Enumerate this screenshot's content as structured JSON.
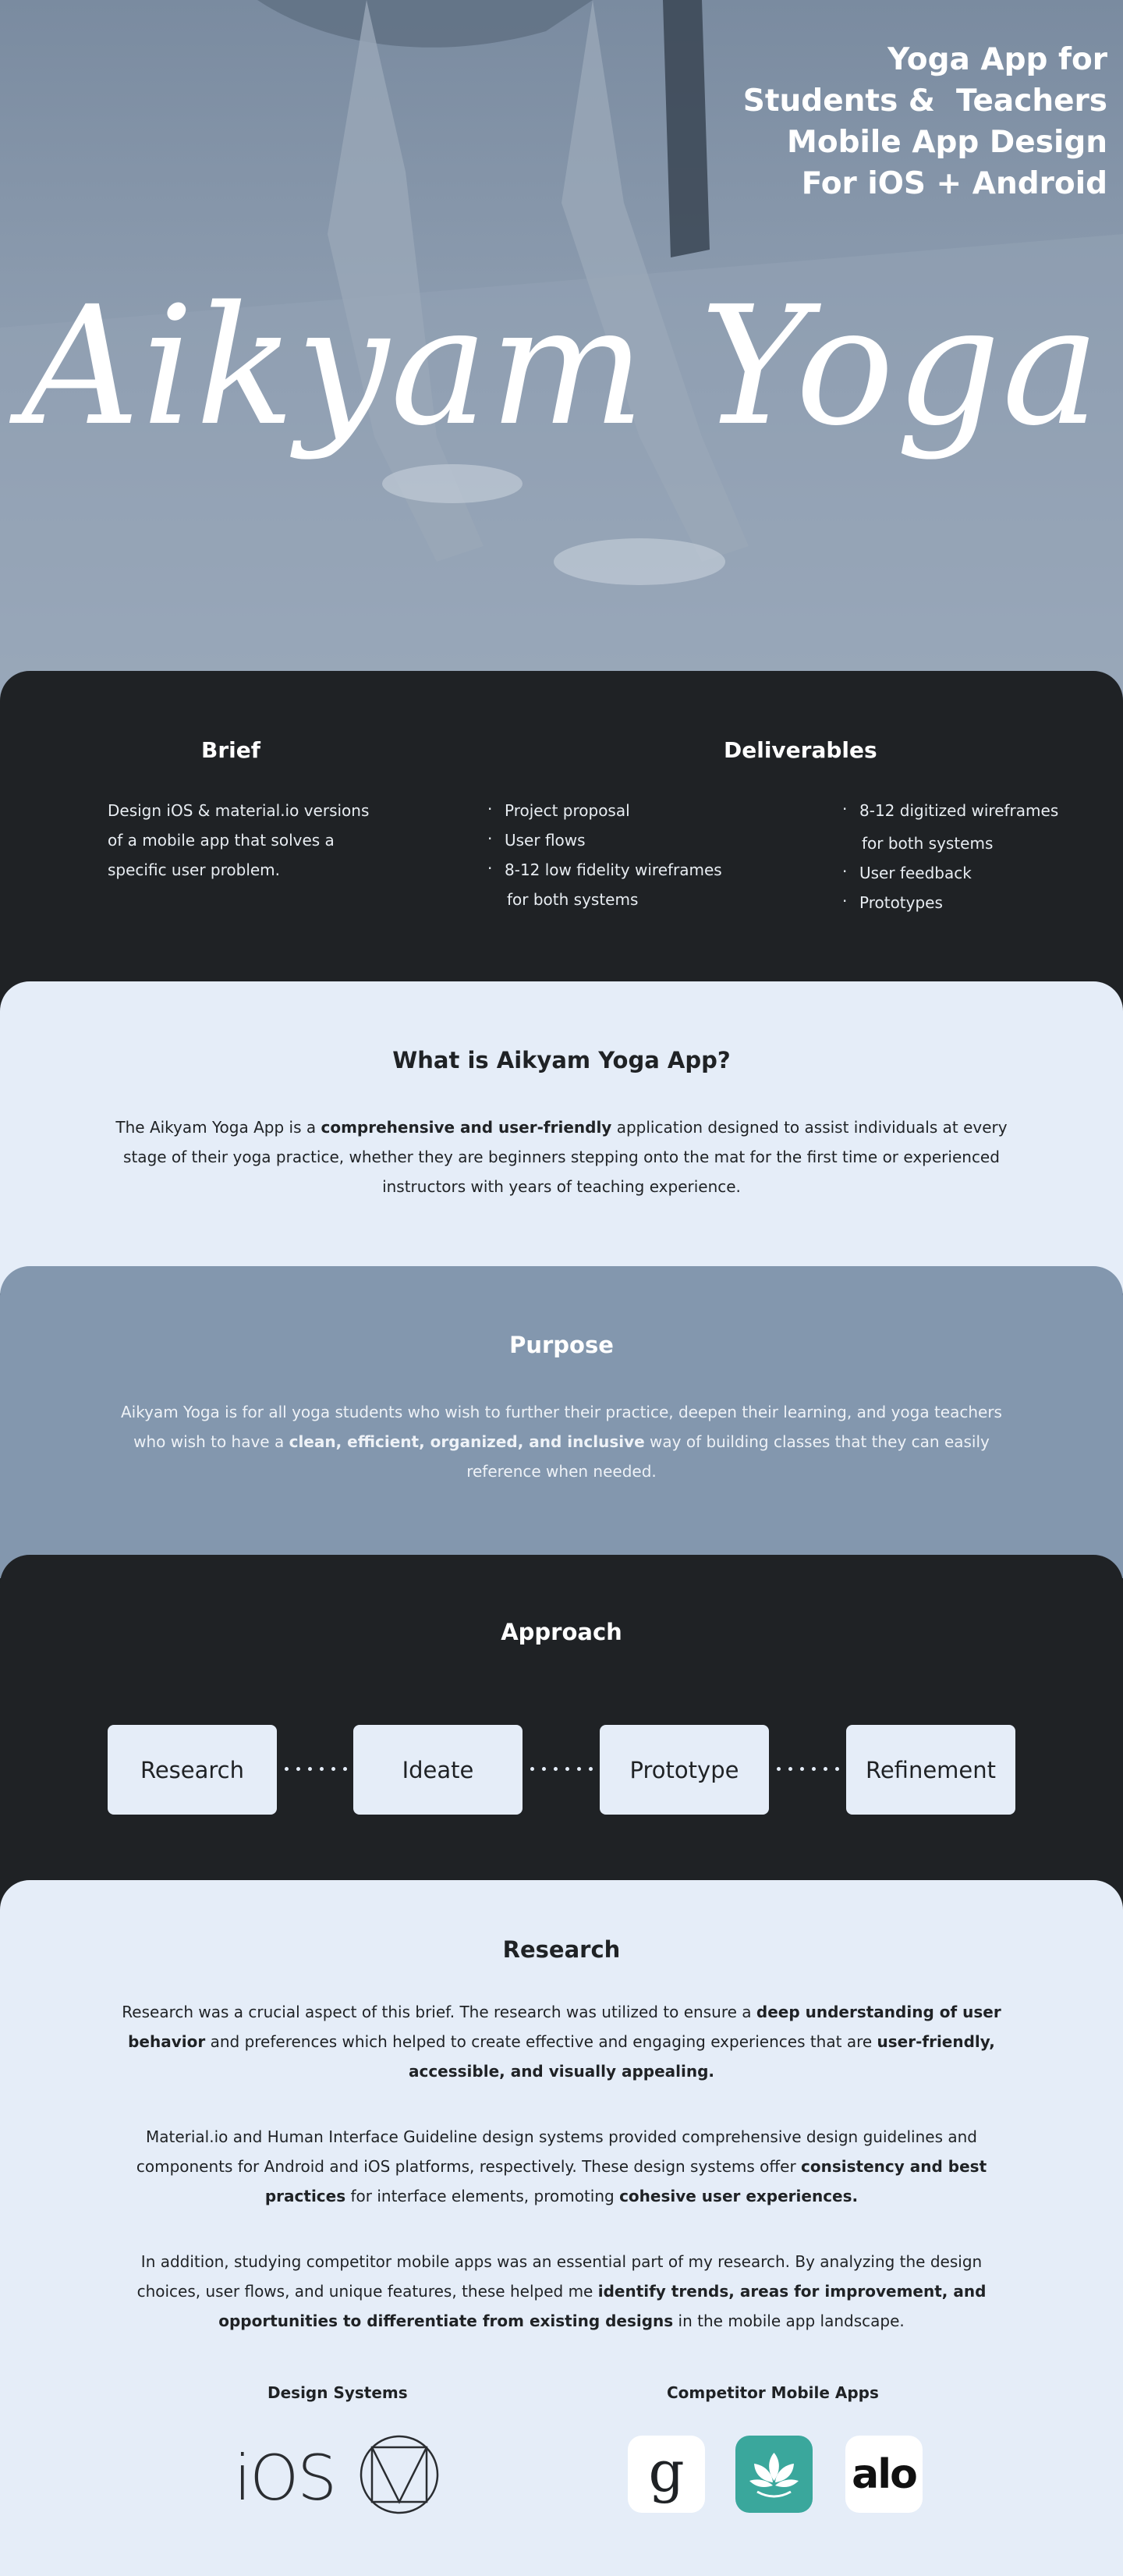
{
  "hero": {
    "tagline": "Yoga App for\nStudents &  Teachers\nMobile App Design\nFor iOS + Android",
    "title": "Aikyam Yoga"
  },
  "brief": {
    "title": "Brief",
    "text": "Design iOS & material.io versions of a mobile app that solves a specific user problem."
  },
  "deliverables": {
    "title": "Deliverables",
    "col1": [
      "Project proposal",
      "User flows",
      "8-12 low fidelity wireframes",
      "for both systems"
    ],
    "col2": [
      "8-12 digitized wireframes",
      "for both systems",
      "User feedback",
      "Prototypes"
    ]
  },
  "what": {
    "title": "What is Aikyam Yoga App?",
    "p_a": "The Aikyam Yoga App is a ",
    "p_b": "comprehensive and user-friendly",
    "p_c": " application designed to assist individuals at every stage of their yoga practice, whether they are beginners stepping onto the mat for the first time or experienced instructors with years of teaching experience."
  },
  "purpose": {
    "title": "Purpose",
    "p_a": "Aikyam Yoga is for all yoga students who wish to further their practice, deepen their learning, and yoga teachers who wish to have a ",
    "p_b": "clean, efficient, organized, and inclusive",
    "p_c": " way of building classes that they can easily reference when needed."
  },
  "approach": {
    "title": "Approach",
    "steps": [
      "Research",
      "Ideate",
      "Prototype",
      "Refinement"
    ]
  },
  "research": {
    "title": "Research",
    "p1_a": "Research was a crucial aspect of this brief. The research was utilized to ensure a ",
    "p1_b": "deep understanding of user behavior",
    "p1_c": " and preferences which helped to create effective and engaging experiences that are ",
    "p1_d": "user-friendly, accessible, and visually appealing.",
    "p2_a": "Material.io and Human Interface Guideline design systems provided comprehensive design guidelines and components for Android and iOS platforms, respectively. These design systems offer ",
    "p2_b": "consistency and best practices",
    "p2_c": " for interface elements, promoting ",
    "p2_d": "cohesive user experiences.",
    "p3_a": "In addition, studying competitor mobile apps was an essential part of my research. By analyzing the design choices, user flows, and unique features, these helped me ",
    "p3_b": "identify trends, areas for improvement, and opportunities to differentiate from existing designs",
    "p3_c": " in the mobile app landscape.",
    "design_systems_label": "Design Systems",
    "competitors_label": "Competitor Mobile Apps",
    "ios_text": "iOS",
    "alo_text": "alo",
    "g_text": "g"
  },
  "colors": {
    "dark": "#1f2225",
    "light": "#e5edf8",
    "slate": "#8397ae",
    "teal": "#3aa79c"
  },
  "icons": [
    "material-logo-icon",
    "lotus-app-icon",
    "glo-app-icon",
    "alo-app-icon"
  ]
}
